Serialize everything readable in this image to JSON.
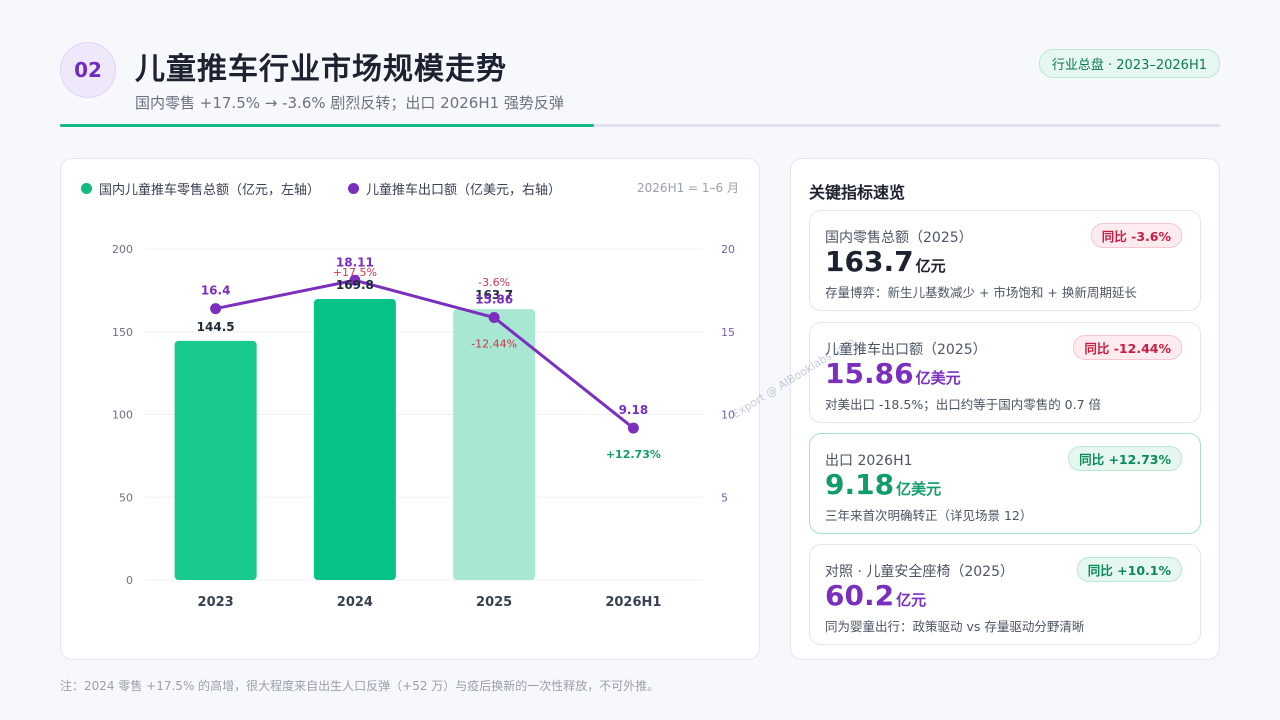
{
  "header": {
    "section_number": "02",
    "title": "儿童推车行业市场规模走势",
    "subtitle": "国内零售 +17.5% → -3.6% 剧烈反转；出口 2026H1 强势反弹",
    "tag": "行业总盘 · 2023–2026H1"
  },
  "chart_legend": {
    "left_series": "国内儿童推车零售总额（亿元，左轴）",
    "right_series": "儿童推车出口额（亿美元，右轴）",
    "note": "2026H1 = 1–6 月"
  },
  "chart_data": {
    "type": "bar+line",
    "categories": [
      "2023",
      "2024",
      "2025",
      "2026H1"
    ],
    "series": [
      {
        "name": "国内儿童推车零售总额（亿元，左轴）",
        "type": "bar",
        "axis": "left",
        "values": [
          144.5,
          169.8,
          163.7,
          null
        ],
        "labels": [
          "144.5",
          "169.8",
          "163.7",
          ""
        ],
        "change_labels": [
          "",
          "+17.5%",
          "-3.6%",
          ""
        ],
        "colors": [
          "#19c98e",
          "#06c287",
          "#a8e8d2",
          ""
        ]
      },
      {
        "name": "儿童推车出口额（亿美元，右轴）",
        "type": "line",
        "axis": "right",
        "values": [
          16.4,
          18.11,
          15.86,
          9.18
        ],
        "labels": [
          "16.4",
          "18.11",
          "15.86",
          "9.18"
        ],
        "change_labels": [
          "",
          "",
          "-12.44%",
          "+12.73%"
        ],
        "color": "#7b2fbe"
      }
    ],
    "y_left": {
      "ylim": [
        0,
        200
      ],
      "ticks": [
        "0",
        "50",
        "100",
        "150",
        "200"
      ]
    },
    "y_right": {
      "ylim": [
        0,
        20
      ],
      "ticks": [
        "5",
        "10",
        "15",
        "20"
      ]
    },
    "grid": true,
    "legend_position": "top-left"
  },
  "kpi_panel": {
    "title": "关键指标速览",
    "cards": [
      {
        "label": "国内零售总额（2025）",
        "value": "163.7",
        "unit": "亿元",
        "badge": "同比 -3.6%",
        "badge_type": "neg",
        "desc": "存量博弈：新生儿基数减少 + 市场饱和 + 换新周期延长",
        "value_color": "#1d2230"
      },
      {
        "label": "儿童推车出口额（2025）",
        "value": "15.86",
        "unit": "亿美元",
        "badge": "同比 -12.44%",
        "badge_type": "neg",
        "desc": "对美出口 -18.5%；出口约等于国内零售的 0.7 倍",
        "value_color": "#7b2fbe"
      },
      {
        "label": "出口 2026H1",
        "value": "9.18",
        "unit": "亿美元",
        "badge": "同比 +12.73%",
        "badge_type": "pos",
        "desc": "三年来首次明确转正（详见场景 12）",
        "value_color": "#0f9e6a"
      },
      {
        "label": "对照 · 儿童安全座椅（2025）",
        "value": "60.2",
        "unit": "亿元",
        "badge": "同比 +10.1%",
        "badge_type": "pos",
        "desc": "同为婴童出行：政策驱动 vs 存量驱动分野清晰",
        "value_color": "#7b2fbe"
      }
    ]
  },
  "footnote": "注：2024 零售 +17.5% 的高增，很大程度来自出生人口反弹（+52 万）与疫后换新的一次性释放，不可外推。",
  "watermark": "Export @ AIBooklabs.com",
  "colors": {
    "green": "#14b881",
    "purple": "#7b2fbe",
    "red": "#d0354f"
  }
}
